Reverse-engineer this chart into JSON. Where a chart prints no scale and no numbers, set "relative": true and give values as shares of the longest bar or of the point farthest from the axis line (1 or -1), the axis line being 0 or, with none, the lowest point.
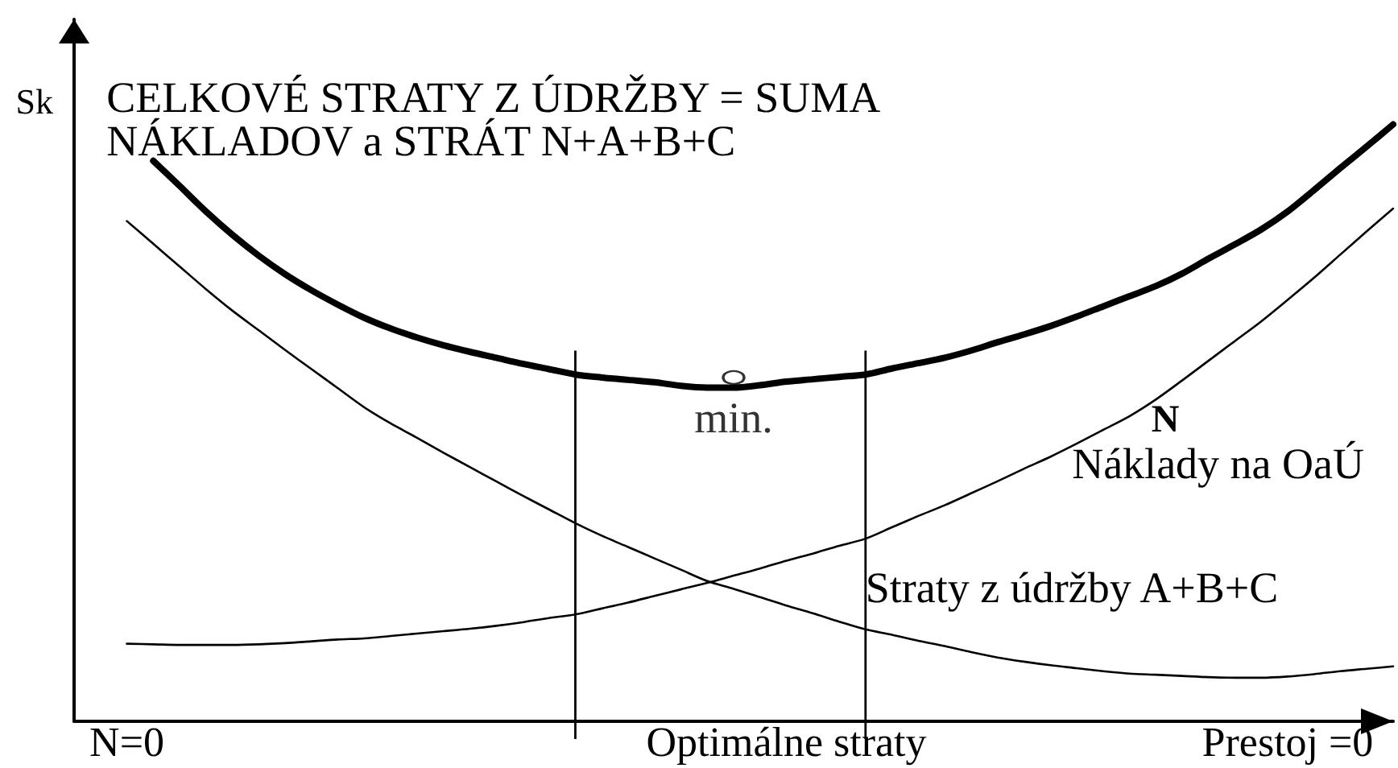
{
  "chart_data": {
    "type": "line",
    "relative": true,
    "ylabel": "Sk",
    "marker": "none",
    "categories": [
      null,
      null,
      "N=0",
      null,
      null,
      null,
      null,
      null,
      null,
      null,
      null,
      null,
      null,
      null,
      null,
      null,
      null,
      null,
      null,
      null,
      null,
      null,
      null,
      null,
      null,
      null,
      null,
      "Optimálne straty",
      null,
      null,
      null,
      null,
      null,
      null,
      null,
      null,
      null,
      null,
      null,
      null,
      null,
      null,
      null,
      null,
      null,
      null,
      "Prestoj =0",
      null,
      null,
      null,
      null
    ],
    "series": [
      {
        "name": "CELKOVÉ STRATY Z ÚDRŽBY = SUMA\nNÁKLADOV a STRÁT N+A+B+C",
        "color": "#000000",
        "values": [
          null,
          null,
          null,
          0.939,
          0.897,
          0.854,
          0.815,
          0.78,
          0.749,
          0.722,
          0.698,
          0.676,
          0.658,
          0.643,
          0.63,
          0.619,
          0.609,
          0.599,
          0.59,
          0.581,
          0.576,
          0.572,
          0.568,
          0.562,
          0.559,
          0.559,
          0.563,
          0.569,
          0.573,
          0.577,
          0.581,
          0.591,
          0.6,
          0.609,
          0.621,
          0.635,
          0.648,
          0.662,
          0.678,
          0.695,
          0.712,
          0.729,
          0.75,
          0.775,
          0.799,
          0.824,
          0.854,
          0.89,
          0.927,
          0.963,
          1
        ]
      },
      {
        "name": "Náklady na OaÚ",
        "color": "#000000",
        "values": [
          null,
          null,
          0.13,
          0.129,
          0.128,
          0.128,
          0.128,
          0.129,
          0.131,
          0.134,
          0.137,
          0.139,
          0.143,
          0.147,
          0.151,
          0.155,
          0.16,
          0.166,
          0.173,
          0.179,
          0.189,
          0.199,
          0.21,
          0.221,
          0.232,
          0.244,
          0.256,
          0.269,
          0.281,
          0.294,
          0.306,
          0.325,
          0.344,
          0.362,
          0.382,
          0.402,
          0.423,
          0.443,
          0.465,
          0.488,
          0.511,
          0.539,
          0.571,
          0.604,
          0.637,
          0.67,
          0.706,
          0.743,
          0.782,
          0.821,
          0.859
        ]
      },
      {
        "name": "Straty z údržby A+B+C",
        "color": "#000000",
        "values": [
          null,
          null,
          0.838,
          0.8,
          0.762,
          0.724,
          0.688,
          0.655,
          0.622,
          0.59,
          0.558,
          0.526,
          0.499,
          0.475,
          0.45,
          0.426,
          0.402,
          0.378,
          0.355,
          0.332,
          0.311,
          0.292,
          0.273,
          0.254,
          0.235,
          0.222,
          0.208,
          0.194,
          0.181,
          0.167,
          0.154,
          0.145,
          0.135,
          0.126,
          0.116,
          0.107,
          0.1,
          0.094,
          0.089,
          0.084,
          0.08,
          0.078,
          0.076,
          0.074,
          0.073,
          0.073,
          0.075,
          0.079,
          0.084,
          0.088,
          0.092
        ]
      },
      {
        "type": "scatter",
        "name": "min.",
        "color": "#000000",
        "marker": "circle",
        "values": [
          null,
          null,
          null,
          null,
          null,
          null,
          null,
          null,
          null,
          null,
          null,
          null,
          null,
          null,
          null,
          null,
          null,
          null,
          null,
          null,
          null,
          null,
          null,
          null,
          null,
          0.576,
          null,
          null,
          null,
          null,
          null,
          null,
          null,
          null,
          null,
          null,
          null,
          null,
          null,
          null,
          null,
          null,
          null,
          null,
          null,
          null,
          null,
          null,
          null,
          null,
          null
        ]
      }
    ],
    "annotations": [
      {
        "text": "N",
        "y": 0.539
      }
    ]
  }
}
